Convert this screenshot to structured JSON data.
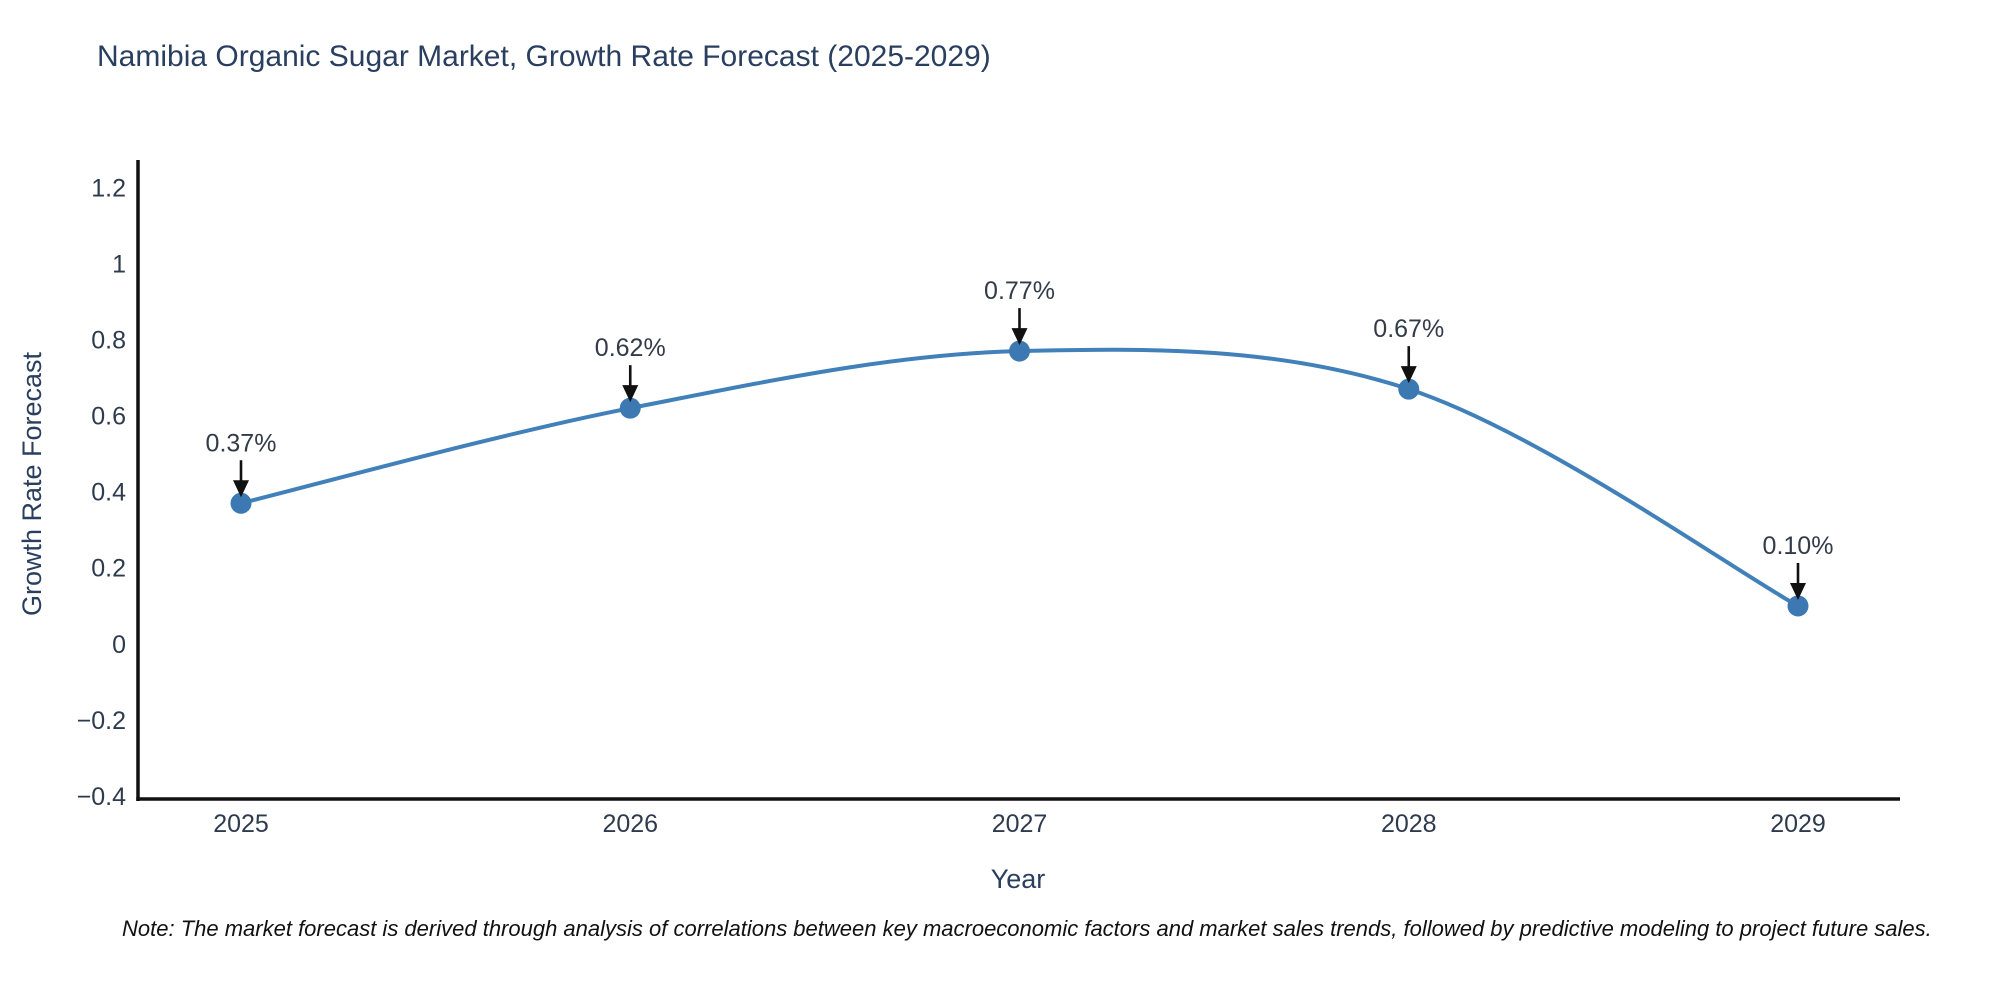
{
  "title": "Namibia Organic Sugar Market, Growth Rate Forecast (2025-2029)",
  "note": "Note: The market forecast is derived through analysis of correlations between key macroeconomic factors and market sales trends, followed by predictive modeling to project future sales.",
  "chart_data": {
    "type": "line",
    "title": "Namibia Organic Sugar Market, Growth Rate Forecast (2025-2029)",
    "xlabel": "Year",
    "ylabel": "Growth Rate Forecast",
    "categories": [
      "2025",
      "2026",
      "2027",
      "2028",
      "2029"
    ],
    "series": [
      {
        "name": "Growth Rate Forecast",
        "values": [
          0.37,
          0.62,
          0.77,
          0.67,
          0.1
        ]
      }
    ],
    "point_labels": [
      "0.37%",
      "0.62%",
      "0.77%",
      "0.67%",
      "0.10%"
    ],
    "ylim": [
      -0.4,
      1.2
    ],
    "yticks": [
      {
        "value": 1.2,
        "label": "1.2"
      },
      {
        "value": 1.0,
        "label": "1"
      },
      {
        "value": 0.8,
        "label": "0.8"
      },
      {
        "value": 0.6,
        "label": "0.6"
      },
      {
        "value": 0.4,
        "label": "0.4"
      },
      {
        "value": 0.2,
        "label": "0.2"
      },
      {
        "value": 0.0,
        "label": "0"
      },
      {
        "value": -0.2,
        "label": "−0.2"
      },
      {
        "value": -0.4,
        "label": "−0.4"
      }
    ],
    "grid": false,
    "legend": "none",
    "line_style": "spline",
    "annotation_arrows": true,
    "colors": {
      "line": "#4180b9",
      "marker": "#3c79b3",
      "arrow": "#111111",
      "axis": "#111111",
      "title_text": "#2a3f5f",
      "tick_text": "#2e3b4e",
      "annotation_text": "#333b49",
      "note_text": "#111111",
      "background": "#ffffff"
    }
  }
}
